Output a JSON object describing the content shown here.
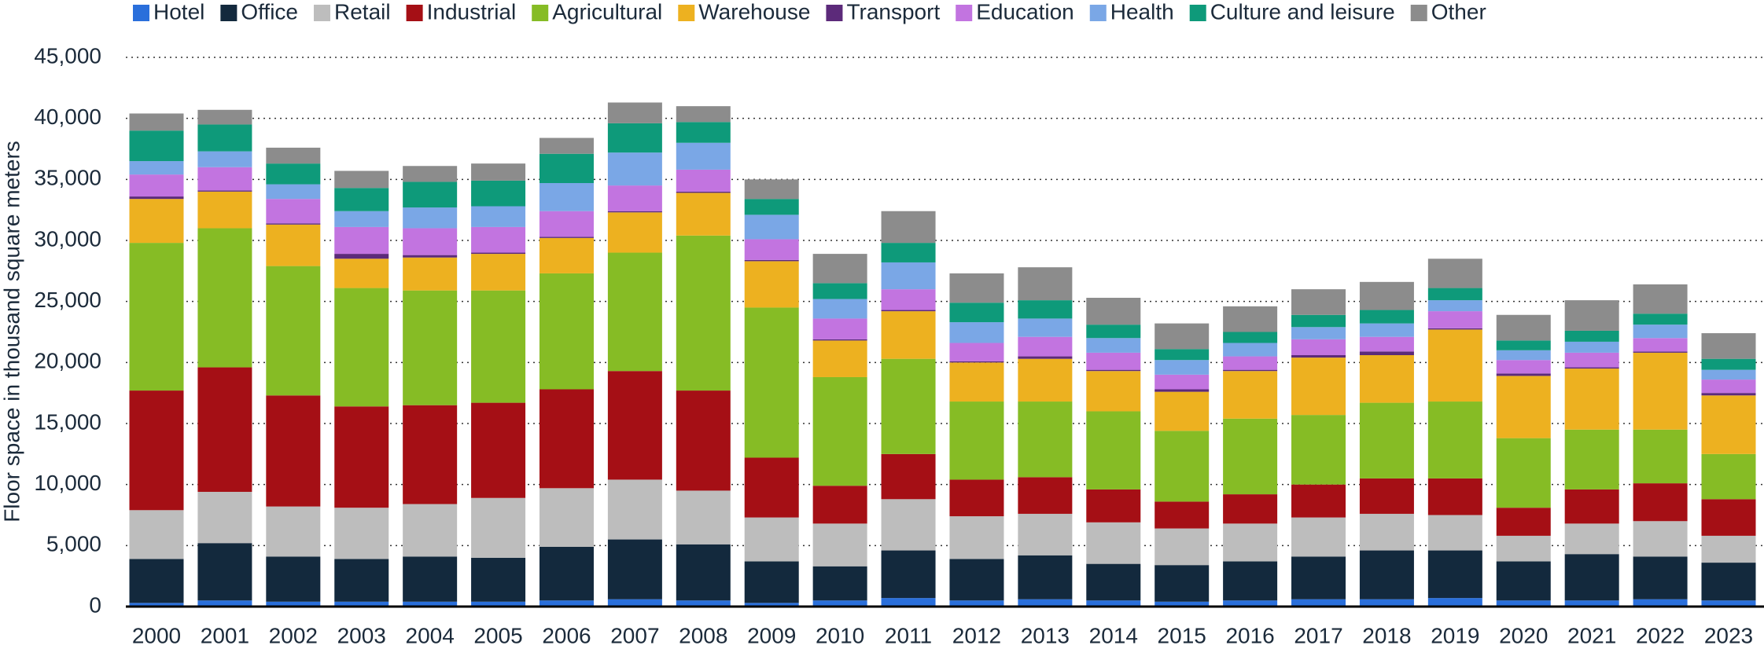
{
  "chart_data": {
    "type": "stacked_bar",
    "y_axis_label": "Floor space in thousand square meters",
    "categories": [
      "2000",
      "2001",
      "2002",
      "2003",
      "2004",
      "2005",
      "2006",
      "2007",
      "2008",
      "2009",
      "2010",
      "2011",
      "2012",
      "2013",
      "2014",
      "2015",
      "2016",
      "2017",
      "2018",
      "2019",
      "2020",
      "2021",
      "2022",
      "2023"
    ],
    "series": [
      {
        "name": "Hotel",
        "color": "#2a6fdb",
        "values": [
          300,
          500,
          400,
          400,
          400,
          400,
          500,
          600,
          500,
          300,
          500,
          700,
          500,
          600,
          500,
          400,
          500,
          600,
          600,
          700,
          500,
          500,
          600,
          500
        ]
      },
      {
        "name": "Office",
        "color": "#13293d",
        "values": [
          3600,
          4700,
          3700,
          3500,
          3700,
          3600,
          4400,
          4900,
          4600,
          3400,
          2800,
          3900,
          3400,
          3600,
          3000,
          3000,
          3200,
          3500,
          4000,
          3900,
          3200,
          3800,
          3500,
          3100
        ]
      },
      {
        "name": "Retail",
        "color": "#bdbdbd",
        "values": [
          4000,
          4200,
          4100,
          4200,
          4300,
          4900,
          4800,
          4900,
          4400,
          3600,
          3500,
          4200,
          3500,
          3400,
          3400,
          3000,
          3100,
          3200,
          3000,
          2900,
          2100,
          2500,
          2900,
          2200
        ]
      },
      {
        "name": "Industrial",
        "color": "#a50f15",
        "values": [
          9800,
          10200,
          9100,
          8300,
          8100,
          7800,
          8100,
          8900,
          8200,
          4900,
          3100,
          3700,
          3000,
          3000,
          2700,
          2200,
          2400,
          2700,
          2900,
          3000,
          2300,
          2800,
          3100,
          3000
        ]
      },
      {
        "name": "Agricultural",
        "color": "#86bc25",
        "values": [
          12100,
          11400,
          10600,
          9700,
          9400,
          9200,
          9500,
          9700,
          12700,
          12300,
          8900,
          7800,
          6400,
          6200,
          6400,
          5800,
          6200,
          5700,
          6200,
          6300,
          5700,
          4900,
          4400,
          3700
        ]
      },
      {
        "name": "Warehouse",
        "color": "#edb120",
        "values": [
          3600,
          3000,
          3400,
          2400,
          2700,
          3000,
          2900,
          3300,
          3500,
          3800,
          3000,
          3900,
          3200,
          3500,
          3300,
          3200,
          3900,
          4700,
          3900,
          5900,
          5100,
          5000,
          6300,
          4800
        ]
      },
      {
        "name": "Transport",
        "color": "#5c2a7a",
        "values": [
          200,
          100,
          100,
          400,
          200,
          100,
          100,
          100,
          100,
          100,
          100,
          100,
          100,
          200,
          100,
          200,
          100,
          200,
          300,
          100,
          200,
          100,
          100,
          200
        ]
      },
      {
        "name": "Education",
        "color": "#c274e0",
        "values": [
          1800,
          1900,
          2000,
          2200,
          2200,
          2100,
          2100,
          2100,
          1800,
          1700,
          1700,
          1700,
          1500,
          1600,
          1400,
          1200,
          1100,
          1300,
          1200,
          1400,
          1100,
          1200,
          1100,
          1100
        ]
      },
      {
        "name": "Health",
        "color": "#7aa7e6",
        "values": [
          1100,
          1300,
          1200,
          1300,
          1700,
          1700,
          2300,
          2700,
          2200,
          2000,
          1600,
          2200,
          1700,
          1500,
          1200,
          1200,
          1100,
          1000,
          1100,
          900,
          800,
          900,
          1100,
          800
        ]
      },
      {
        "name": "Culture and leisure",
        "color": "#0e9a7a",
        "values": [
          2500,
          2200,
          1700,
          1900,
          2100,
          2100,
          2400,
          2400,
          1700,
          1300,
          1300,
          1600,
          1600,
          1500,
          1100,
          900,
          900,
          1000,
          1100,
          1000,
          800,
          900,
          900,
          900
        ]
      },
      {
        "name": "Other",
        "color": "#8c8c8c",
        "values": [
          1400,
          1200,
          1300,
          1400,
          1300,
          1400,
          1300,
          1700,
          1300,
          1600,
          2400,
          2600,
          2400,
          2700,
          2200,
          2100,
          2100,
          2100,
          2300,
          2400,
          2100,
          2500,
          2400,
          2100
        ]
      }
    ],
    "ylim": [
      0,
      45000
    ],
    "yticks": [
      0,
      {
        "value": 5000,
        "label": "5,000"
      },
      {
        "value": 10000,
        "label": "10,000"
      },
      {
        "value": 15000,
        "label": "15,000"
      },
      {
        "value": 20000,
        "label": "20,000"
      },
      {
        "value": 25000,
        "label": "25,000"
      },
      {
        "value": 30000,
        "label": "30,000"
      },
      {
        "value": 35000,
        "label": "35,000"
      },
      {
        "value": 40000,
        "label": "40,000"
      },
      {
        "value": 45000,
        "label": "45,000"
      }
    ],
    "grid": true,
    "legend": "top"
  }
}
